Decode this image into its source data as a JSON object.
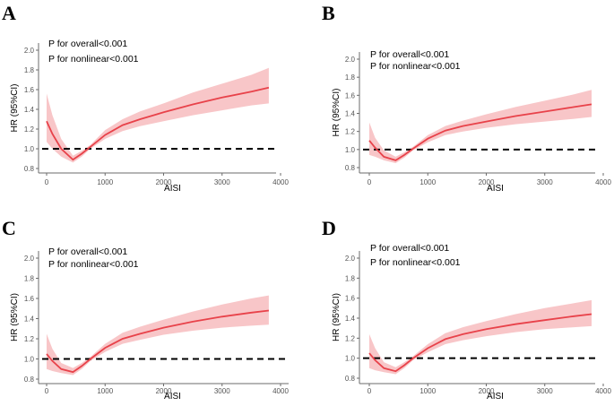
{
  "chart_data": [
    {
      "type": "line",
      "panel": "A",
      "annotations": [
        "P for overall<0.001",
        "P for nonlinear<0.001"
      ],
      "xlabel": "AISI",
      "ylabel": "HR (95%CI)",
      "xlim": [
        -50,
        4000
      ],
      "ylim": [
        0.75,
        2.0
      ],
      "xticks": [
        0,
        1000,
        2000,
        3000,
        4000
      ],
      "yticks": [
        0.8,
        1.0,
        1.2,
        1.4,
        1.6,
        1.8,
        2.0
      ],
      "ytick_labels": [
        "0.8",
        "1.0",
        "1.2",
        "1.4",
        "1.6",
        "1.8",
        "2.0"
      ],
      "reference_line": 1.0,
      "series": [
        {
          "name": "HR",
          "x": [
            0,
            100,
            250,
            450,
            600,
            750,
            1000,
            1300,
            1600,
            2000,
            2500,
            3000,
            3500,
            3800
          ],
          "y": [
            1.28,
            1.15,
            1.0,
            0.89,
            0.95,
            1.02,
            1.14,
            1.24,
            1.3,
            1.37,
            1.45,
            1.52,
            1.58,
            1.62
          ],
          "lower": [
            1.07,
            1.0,
            0.92,
            0.86,
            0.92,
            1.0,
            1.1,
            1.18,
            1.23,
            1.28,
            1.34,
            1.39,
            1.44,
            1.46
          ],
          "upper": [
            1.56,
            1.34,
            1.1,
            0.93,
            0.98,
            1.04,
            1.19,
            1.3,
            1.38,
            1.46,
            1.57,
            1.66,
            1.75,
            1.82
          ]
        }
      ]
    },
    {
      "type": "line",
      "panel": "B",
      "annotations": [
        "P for overall<0.001",
        "P for nonlinear<0.001"
      ],
      "xlabel": "AISI",
      "ylabel": "HR (95%CI)",
      "xlim": [
        -50,
        4000
      ],
      "ylim": [
        0.75,
        2.0
      ],
      "xticks": [
        0,
        1000,
        2000,
        3000,
        4000
      ],
      "yticks": [
        0.8,
        1.0,
        1.2,
        1.4,
        1.6,
        1.8,
        2.0
      ],
      "ytick_labels": [
        "0.8",
        "1.0",
        "1.2",
        "1.4",
        "1.6",
        "1.8",
        "2.0"
      ],
      "reference_line": 1.0,
      "series": [
        {
          "name": "HR",
          "x": [
            0,
            100,
            250,
            450,
            600,
            750,
            1000,
            1300,
            1600,
            2000,
            2500,
            3000,
            3500,
            3800
          ],
          "y": [
            1.1,
            1.02,
            0.92,
            0.88,
            0.94,
            1.01,
            1.12,
            1.21,
            1.26,
            1.31,
            1.37,
            1.42,
            1.47,
            1.5
          ],
          "lower": [
            0.94,
            0.92,
            0.88,
            0.85,
            0.91,
            0.99,
            1.08,
            1.16,
            1.2,
            1.24,
            1.28,
            1.31,
            1.34,
            1.36
          ],
          "upper": [
            1.3,
            1.13,
            0.99,
            0.92,
            0.97,
            1.03,
            1.16,
            1.26,
            1.32,
            1.39,
            1.47,
            1.54,
            1.61,
            1.66
          ]
        }
      ]
    },
    {
      "type": "line",
      "panel": "C",
      "annotations": [
        "P for overall<0.001",
        "P for nonlinear<0.001"
      ],
      "xlabel": "AISI",
      "ylabel": "HR (95%CI)",
      "xlim": [
        -50,
        4000
      ],
      "ylim": [
        0.75,
        2.0
      ],
      "xticks": [
        0,
        1000,
        2000,
        3000,
        4000
      ],
      "yticks": [
        0.8,
        1.0,
        1.2,
        1.4,
        1.6,
        1.8,
        2.0
      ],
      "ytick_labels": [
        "0.8",
        "1.0",
        "1.2",
        "1.4",
        "1.6",
        "1.8",
        "2.0"
      ],
      "reference_line": 1.0,
      "series": [
        {
          "name": "HR",
          "x": [
            0,
            100,
            250,
            450,
            600,
            750,
            1000,
            1300,
            1600,
            2000,
            2500,
            3000,
            3500,
            3800
          ],
          "y": [
            1.05,
            0.98,
            0.9,
            0.87,
            0.93,
            1.0,
            1.11,
            1.2,
            1.25,
            1.31,
            1.37,
            1.42,
            1.46,
            1.48
          ],
          "lower": [
            0.9,
            0.88,
            0.86,
            0.84,
            0.9,
            0.98,
            1.07,
            1.15,
            1.19,
            1.24,
            1.28,
            1.31,
            1.33,
            1.34
          ],
          "upper": [
            1.25,
            1.1,
            0.96,
            0.91,
            0.96,
            1.02,
            1.15,
            1.26,
            1.32,
            1.39,
            1.47,
            1.54,
            1.6,
            1.63
          ]
        }
      ]
    },
    {
      "type": "line",
      "panel": "D",
      "annotations": [
        "P for overall<0.001",
        "P for nonlinear<0.001"
      ],
      "xlabel": "AISI",
      "ylabel": "HR (95%CI)",
      "xlim": [
        -50,
        4000
      ],
      "ylim": [
        0.75,
        2.0
      ],
      "xticks": [
        0,
        1000,
        2000,
        3000,
        4000
      ],
      "yticks": [
        0.8,
        1.0,
        1.2,
        1.4,
        1.6,
        1.8,
        2.0
      ],
      "ytick_labels": [
        "0.8",
        "1.0",
        "1.2",
        "1.4",
        "1.6",
        "1.8",
        "2.0"
      ],
      "reference_line": 1.0,
      "series": [
        {
          "name": "HR",
          "x": [
            0,
            100,
            250,
            450,
            600,
            750,
            1000,
            1300,
            1600,
            2000,
            2500,
            3000,
            3500,
            3800
          ],
          "y": [
            1.05,
            0.98,
            0.9,
            0.87,
            0.93,
            1.0,
            1.1,
            1.19,
            1.24,
            1.29,
            1.34,
            1.38,
            1.42,
            1.44
          ],
          "lower": [
            0.9,
            0.88,
            0.86,
            0.84,
            0.9,
            0.98,
            1.06,
            1.14,
            1.18,
            1.22,
            1.26,
            1.29,
            1.31,
            1.32
          ],
          "upper": [
            1.24,
            1.1,
            0.96,
            0.91,
            0.96,
            1.02,
            1.14,
            1.25,
            1.31,
            1.37,
            1.44,
            1.5,
            1.55,
            1.58
          ]
        }
      ]
    }
  ],
  "colors": {
    "line": "#e8424a",
    "band": "#f8c6c8",
    "reference": "#000000",
    "axis": "#6b6b6b"
  }
}
